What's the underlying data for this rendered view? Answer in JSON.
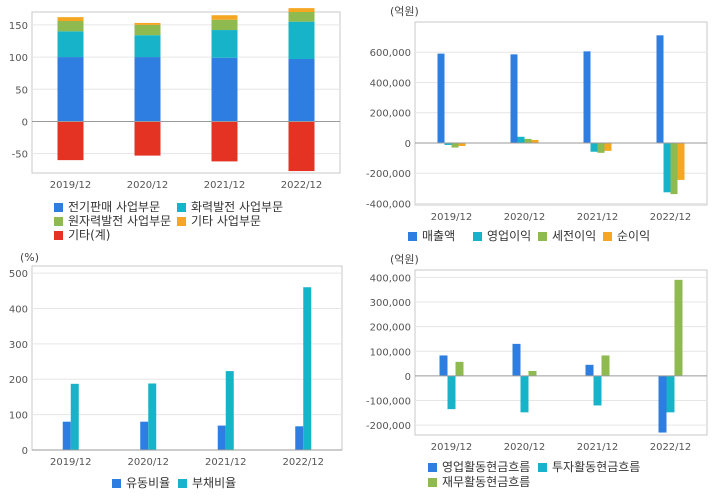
{
  "chart_data": [
    {
      "type": "bar",
      "stacked": true,
      "unit": "",
      "categories": [
        "2019/12",
        "2020/12",
        "2021/12",
        "2022/12"
      ],
      "series": [
        {
          "name": "전기판매 사업부문",
          "color": "#2e7de1",
          "values": [
            100,
            100,
            99,
            97
          ]
        },
        {
          "name": "화력발전 사업부문",
          "color": "#17b4c9",
          "values": [
            40,
            34,
            43,
            58
          ]
        },
        {
          "name": "원자력발전 사업부문",
          "color": "#8fba4f",
          "values": [
            16,
            16,
            16,
            15
          ]
        },
        {
          "name": "기타 사업부문",
          "color": "#f5a623",
          "values": [
            6,
            3,
            7,
            6
          ]
        },
        {
          "name": "기타(계)",
          "color": "#e53323",
          "values": [
            -60,
            -53,
            -62,
            -77
          ]
        }
      ],
      "yticks": [
        150,
        100,
        50,
        0,
        -50
      ],
      "ylim": [
        -80,
        170
      ],
      "grid": true
    },
    {
      "type": "bar",
      "unit": "(억원)",
      "categories": [
        "2019/12",
        "2020/12",
        "2021/12",
        "2022/12"
      ],
      "series": [
        {
          "name": "매출액",
          "color": "#2e7de1",
          "values": [
            591000,
            586000,
            606000,
            712000
          ]
        },
        {
          "name": "영업이익",
          "color": "#17b4c9",
          "values": [
            -13000,
            41000,
            -58000,
            -326000
          ]
        },
        {
          "name": "세전이익",
          "color": "#8fba4f",
          "values": [
            -30000,
            27000,
            -65000,
            -338000
          ]
        },
        {
          "name": "순이익",
          "color": "#f5a623",
          "values": [
            -20000,
            20000,
            -52000,
            -244000
          ]
        }
      ],
      "yticks": [
        "600,000",
        "400,000",
        "200,000",
        "0",
        "-200,000",
        "-400,000"
      ],
      "ylim": [
        -410000,
        800000
      ],
      "grid": true
    },
    {
      "type": "bar",
      "unit": "(%)",
      "categories": [
        "2019/12",
        "2020/12",
        "2021/12",
        "2022/12"
      ],
      "series": [
        {
          "name": "유동비율",
          "color": "#2e7de1",
          "values": [
            80,
            80,
            69,
            67
          ]
        },
        {
          "name": "부채비율",
          "color": "#17b4c9",
          "values": [
            187,
            188,
            223,
            460
          ]
        }
      ],
      "yticks": [
        500,
        400,
        300,
        200,
        100,
        0
      ],
      "ylim": [
        0,
        520
      ],
      "grid": true
    },
    {
      "type": "bar",
      "unit": "(억원)",
      "categories": [
        "2019/12",
        "2020/12",
        "2021/12",
        "2022/12"
      ],
      "series": [
        {
          "name": "영업활동현금흐름",
          "color": "#2e7de1",
          "values": [
            83000,
            130000,
            45000,
            -230000
          ]
        },
        {
          "name": "투자활동현금흐름",
          "color": "#17b4c9",
          "values": [
            -135000,
            -148000,
            -120000,
            -148000
          ]
        },
        {
          "name": "재무활동현금흐름",
          "color": "#8fba4f",
          "values": [
            57000,
            20000,
            83000,
            390000
          ]
        }
      ],
      "yticks": [
        "400,000",
        "300,000",
        "200,000",
        "100,000",
        "0",
        "-100,000",
        "-200,000"
      ],
      "ylim": [
        -240000,
        430000
      ],
      "grid": true
    }
  ]
}
